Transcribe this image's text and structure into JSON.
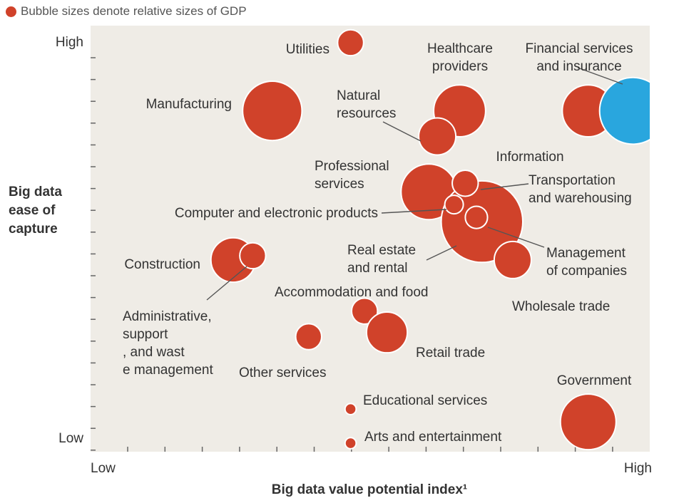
{
  "legend": {
    "text": "Bubble sizes denote relative sizes of GDP"
  },
  "colors": {
    "bubble": "#d0422a",
    "highlight": "#29a6de",
    "plot_bg": "#efece6",
    "label": "#333333"
  },
  "chart_data": {
    "type": "scatter",
    "title": "",
    "xlabel": "Big data value potential index¹",
    "ylabel": [
      "Big data",
      "ease of",
      "capture"
    ],
    "x_tick_labels": {
      "low": "Low",
      "high": "High"
    },
    "y_tick_labels": {
      "low": "Low",
      "high": "High"
    },
    "xlim": [
      0,
      100
    ],
    "ylim": [
      0,
      100
    ],
    "size_note": "Bubble sizes denote relative sizes of GDP",
    "points": [
      {
        "label": "Utilities",
        "x": 46.5,
        "y": 96,
        "size": 3.5
      },
      {
        "label": "Healthcare providers",
        "x": 66,
        "y": 80,
        "size": 7
      },
      {
        "label": "Financial services and insurance",
        "x": 89,
        "y": 80,
        "size": 7
      },
      {
        "label": "Information",
        "x": 97,
        "y": 80,
        "size": 9,
        "highlight": true
      },
      {
        "label": "Manufacturing",
        "x": 32.5,
        "y": 80,
        "size": 8
      },
      {
        "label": "Natural resources",
        "x": 62,
        "y": 74,
        "size": 5
      },
      {
        "label": "Professional services",
        "x": 60.5,
        "y": 61,
        "size": 7.5
      },
      {
        "label": "Real estate and rental",
        "x": 70,
        "y": 54,
        "size": 11
      },
      {
        "label": "Transportation and warehousing",
        "x": 67,
        "y": 63,
        "size": 3.5
      },
      {
        "label": "Computer and electronic products",
        "x": 65,
        "y": 58,
        "size": 2.5
      },
      {
        "label": "Management of companies",
        "x": 69,
        "y": 55,
        "size": 3
      },
      {
        "label": "Wholesale trade",
        "x": 75.5,
        "y": 45,
        "size": 5
      },
      {
        "label": "Construction",
        "x": 25.5,
        "y": 45,
        "size": 6
      },
      {
        "label": "Administrative, support, and waste management",
        "x": 29,
        "y": 46,
        "size": 3.5
      },
      {
        "label": "Accommodation and food",
        "x": 49,
        "y": 33,
        "size": 3.5
      },
      {
        "label": "Retail trade",
        "x": 53,
        "y": 28,
        "size": 5.5
      },
      {
        "label": "Other services",
        "x": 39,
        "y": 27,
        "size": 3.5
      },
      {
        "label": "Educational services",
        "x": 46.5,
        "y": 10,
        "size": 1.5
      },
      {
        "label": "Government",
        "x": 89,
        "y": 7,
        "size": 7.5
      },
      {
        "label": "Arts and entertainment",
        "x": 46.5,
        "y": 2,
        "size": 1.5
      }
    ]
  }
}
